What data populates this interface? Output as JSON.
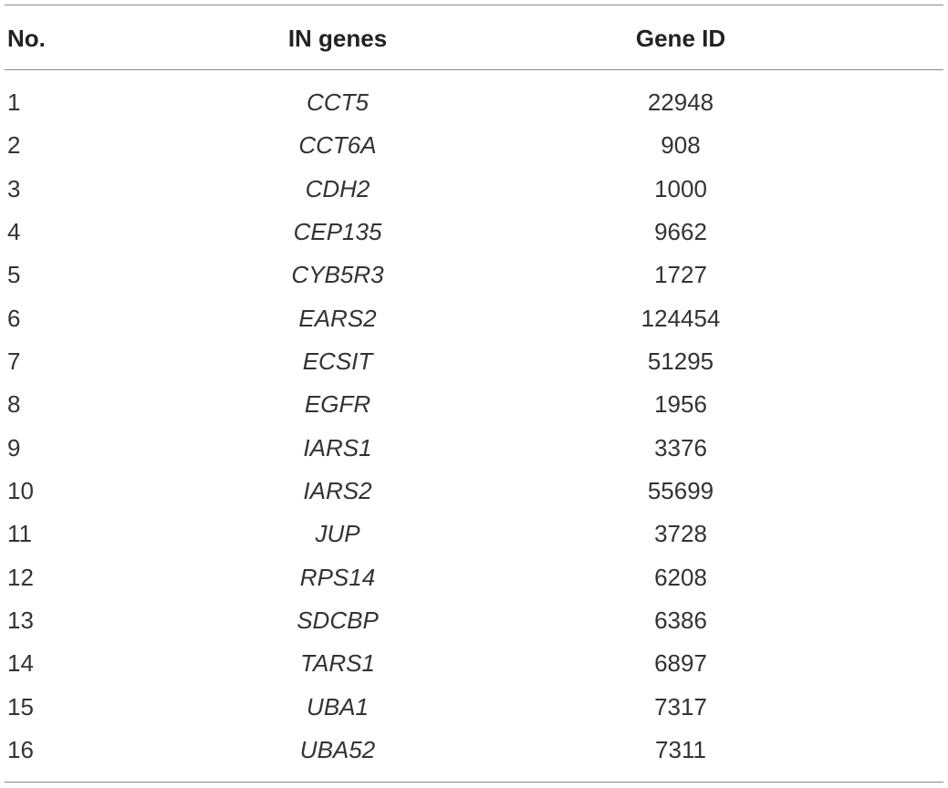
{
  "table": {
    "header": [
      "No.",
      "IN genes",
      "Gene ID"
    ],
    "rows": [
      [
        "1",
        "CCT5",
        "22948"
      ],
      [
        "2",
        "CCT6A",
        "908"
      ],
      [
        "3",
        "CDH2",
        "1000"
      ],
      [
        "4",
        "CEP135",
        "9662"
      ],
      [
        "5",
        "CYB5R3",
        "1727"
      ],
      [
        "6",
        "EARS2",
        "124454"
      ],
      [
        "7",
        "ECSIT",
        "51295"
      ],
      [
        "8",
        "EGFR",
        "1956"
      ],
      [
        "9",
        "IARS1",
        "3376"
      ],
      [
        "10",
        "IARS2",
        "55699"
      ],
      [
        "11",
        "JUP",
        "3728"
      ],
      [
        "12",
        "RPS14",
        "6208"
      ],
      [
        "13",
        "SDCBP",
        "6386"
      ],
      [
        "14",
        "TARS1",
        "6897"
      ],
      [
        "15",
        "UBA1",
        "7317"
      ],
      [
        "16",
        "UBA52",
        "7311"
      ]
    ]
  }
}
